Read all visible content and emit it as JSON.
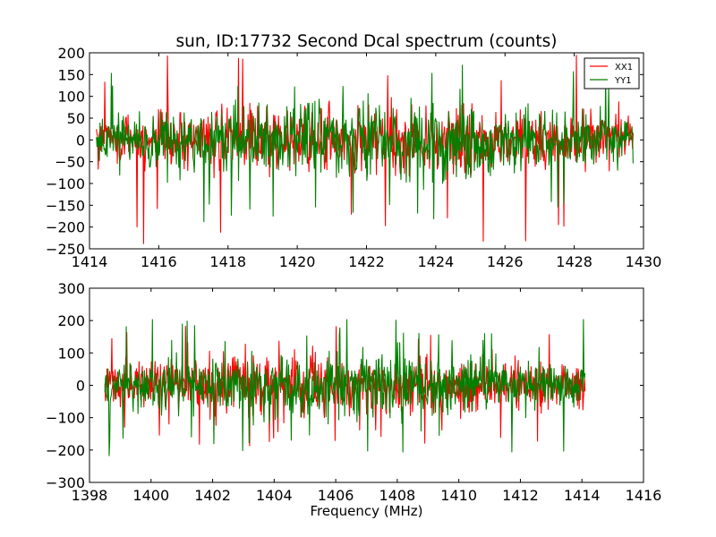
{
  "chart_data": [
    {
      "type": "line",
      "title": "sun, ID:17732 Second Dcal spectrum (counts)",
      "xlabel": "",
      "ylabel": "",
      "xlim": [
        1414,
        1430
      ],
      "ylim": [
        -250,
        200
      ],
      "xticks": [
        1414,
        1416,
        1418,
        1420,
        1422,
        1424,
        1426,
        1428,
        1430
      ],
      "yticks": [
        -250,
        -200,
        -150,
        -100,
        -50,
        0,
        50,
        100,
        150,
        200
      ],
      "xtick_labels": [
        "1414",
        "1416",
        "1418",
        "1420",
        "1422",
        "1424",
        "1426",
        "1428",
        "1430"
      ],
      "ytick_labels": [
        "−250",
        "−200",
        "−150",
        "−100",
        "−50",
        "0",
        "50",
        "100",
        "150",
        "200"
      ],
      "grid": false,
      "legend": {
        "placement": "top-right",
        "entries": [
          {
            "name": "XX1",
            "color": "#ff0000"
          },
          {
            "name": "YY1",
            "color": "#008000"
          }
        ]
      },
      "series": [
        {
          "name": "XX1",
          "color": "#ff0000",
          "x_range": [
            1414.2,
            1429.7
          ],
          "noise": {
            "center": 0,
            "center_half_width": 45,
            "edge_half_width": 30,
            "peak_max": 195,
            "peak_min": -240
          }
        },
        {
          "name": "YY1",
          "color": "#008000",
          "x_range": [
            1414.2,
            1429.7
          ],
          "noise": {
            "center": 0,
            "center_half_width": 50,
            "edge_half_width": 30,
            "peak_max": 180,
            "peak_min": -195
          }
        }
      ]
    },
    {
      "type": "line",
      "title": "",
      "xlabel": "Frequency (MHz)",
      "ylabel": "",
      "xlim": [
        1398,
        1416
      ],
      "ylim": [
        -300,
        300
      ],
      "xticks": [
        1398,
        1400,
        1402,
        1404,
        1406,
        1408,
        1410,
        1412,
        1414,
        1416
      ],
      "yticks": [
        -300,
        -200,
        -100,
        0,
        100,
        200,
        300
      ],
      "xtick_labels": [
        "1398",
        "1400",
        "1402",
        "1404",
        "1406",
        "1408",
        "1410",
        "1412",
        "1414",
        "1416"
      ],
      "ytick_labels": [
        "−300",
        "−200",
        "−100",
        "0",
        "100",
        "200",
        "300"
      ],
      "grid": false,
      "series": [
        {
          "name": "XX1",
          "color": "#ff0000",
          "x_range": [
            1398.5,
            1414.1
          ],
          "noise": {
            "center": 0,
            "center_half_width": 55,
            "edge_half_width": 35,
            "peak_max": 185,
            "peak_min": -190
          }
        },
        {
          "name": "YY1",
          "color": "#008000",
          "x_range": [
            1398.5,
            1414.1
          ],
          "noise": {
            "center": 0,
            "center_half_width": 60,
            "edge_half_width": 35,
            "peak_max": 205,
            "peak_min": -220
          }
        }
      ]
    }
  ]
}
